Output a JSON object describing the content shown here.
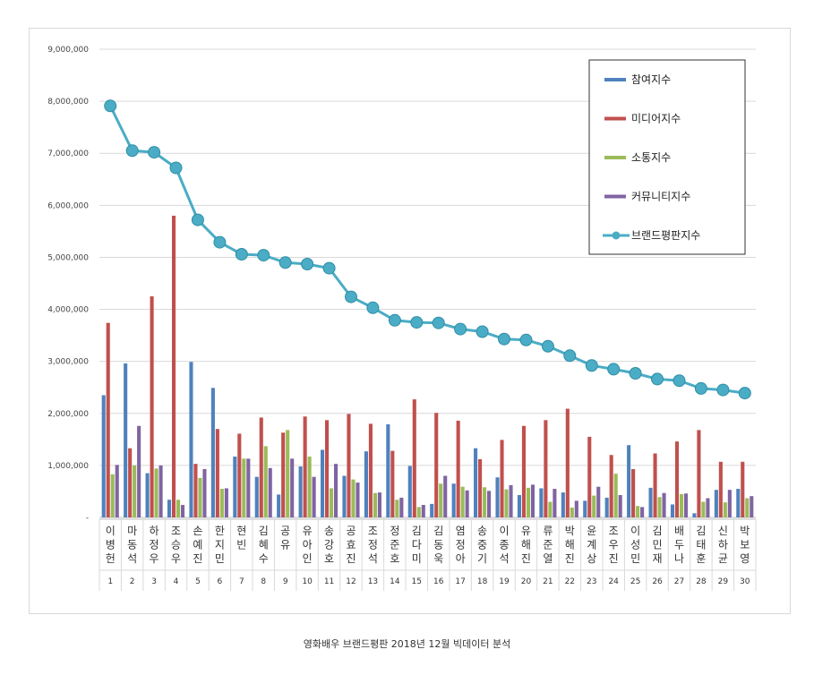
{
  "caption": "영화배우 브랜드평판 2018년 12월 빅데이터 분석",
  "chart_data": {
    "type": "bar",
    "ylim": [
      0,
      9000000
    ],
    "yticks": [
      "-",
      "1,000,000",
      "2,000,000",
      "3,000,000",
      "4,000,000",
      "5,000,000",
      "6,000,000",
      "7,000,000",
      "8,000,000",
      "9,000,000"
    ],
    "grid": true,
    "legend_position": "top-right",
    "categories": [
      "이병헌",
      "마동석",
      "하정우",
      "조승우",
      "손예진",
      "한지민",
      "현빈",
      "김혜수",
      "공유",
      "유아인",
      "송강호",
      "공효진",
      "조정석",
      "정준호",
      "김다미",
      "김동욱",
      "염정아",
      "송중기",
      "이종석",
      "유해진",
      "류준열",
      "박해진",
      "윤계상",
      "조우진",
      "이성민",
      "김민재",
      "배두나",
      "김태훈",
      "신하균",
      "박보영"
    ],
    "ranks": [
      "1",
      "2",
      "3",
      "4",
      "5",
      "6",
      "7",
      "8",
      "9",
      "10",
      "11",
      "12",
      "13",
      "14",
      "15",
      "16",
      "17",
      "18",
      "19",
      "20",
      "21",
      "22",
      "23",
      "24",
      "25",
      "26",
      "27",
      "28",
      "29",
      "30"
    ],
    "series": [
      {
        "name": "참여지수",
        "type": "bar",
        "color": "#4f81bd",
        "values": [
          2350000,
          2960000,
          850000,
          340000,
          2990000,
          2490000,
          1170000,
          780000,
          440000,
          980000,
          1300000,
          800000,
          1270000,
          1790000,
          990000,
          260000,
          650000,
          1330000,
          770000,
          430000,
          560000,
          480000,
          320000,
          380000,
          1390000,
          570000,
          250000,
          80000,
          530000,
          550000
        ]
      },
      {
        "name": "미디어지수",
        "type": "bar",
        "color": "#c0504d",
        "values": [
          3740000,
          1330000,
          4250000,
          5800000,
          1030000,
          1700000,
          1610000,
          1920000,
          1630000,
          1940000,
          1870000,
          1990000,
          1800000,
          1280000,
          2270000,
          2010000,
          1860000,
          1120000,
          1490000,
          1760000,
          1870000,
          2090000,
          1550000,
          1200000,
          930000,
          1230000,
          1460000,
          1680000,
          1070000,
          1070000
        ]
      },
      {
        "name": "소통지수",
        "type": "bar",
        "color": "#9bbb59",
        "values": [
          830000,
          1000000,
          940000,
          340000,
          760000,
          550000,
          1130000,
          1370000,
          1680000,
          1170000,
          560000,
          730000,
          470000,
          340000,
          200000,
          650000,
          590000,
          580000,
          540000,
          570000,
          300000,
          190000,
          420000,
          840000,
          220000,
          390000,
          450000,
          300000,
          290000,
          370000
        ]
      },
      {
        "name": "커뮤니티지수",
        "type": "bar",
        "color": "#8064a2",
        "values": [
          1010000,
          1760000,
          1000000,
          240000,
          930000,
          560000,
          1130000,
          950000,
          1130000,
          780000,
          1030000,
          670000,
          480000,
          380000,
          240000,
          800000,
          520000,
          510000,
          620000,
          630000,
          550000,
          320000,
          590000,
          430000,
          200000,
          470000,
          460000,
          370000,
          530000,
          410000
        ]
      },
      {
        "name": "브랜드평판지수",
        "type": "line",
        "color": "#4bacc6",
        "values": [
          7910000,
          7050000,
          7020000,
          6720000,
          5720000,
          5290000,
          5060000,
          5040000,
          4900000,
          4870000,
          4790000,
          4240000,
          4030000,
          3790000,
          3750000,
          3740000,
          3620000,
          3570000,
          3430000,
          3410000,
          3290000,
          3110000,
          2920000,
          2850000,
          2770000,
          2660000,
          2630000,
          2480000,
          2450000,
          2390000
        ]
      }
    ]
  }
}
